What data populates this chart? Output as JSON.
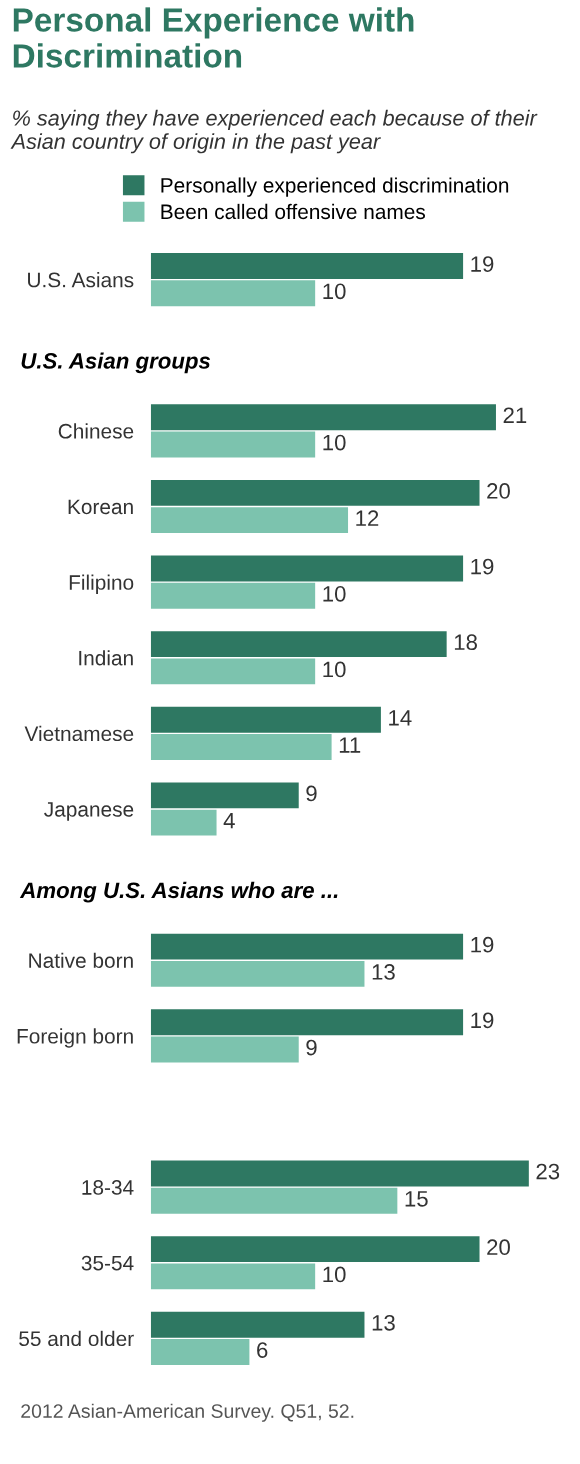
{
  "chart_data": {
    "type": "bar",
    "orientation": "horizontal",
    "title": "Personal Experience with Discrimination",
    "subtitle": "% saying they have experienced each because of their Asian country of origin in the past year",
    "categories": [
      "U.S. Asians",
      null,
      "Chinese",
      "Korean",
      "Filipino",
      "Indian",
      "Vietnamese",
      "Japanese",
      null,
      "Native born",
      "Foreign born",
      null,
      "18-34",
      "35-54",
      "55 and older"
    ],
    "series": [
      {
        "name": "Personally experienced discrimination",
        "color": "#2e7862",
        "values": [
          19,
          null,
          21,
          20,
          19,
          18,
          14,
          9,
          null,
          19,
          19,
          null,
          23,
          20,
          13
        ]
      },
      {
        "name": "Been called offensive names",
        "color": "#7cc3ae",
        "values": [
          10,
          null,
          10,
          12,
          10,
          10,
          11,
          4,
          null,
          13,
          9,
          null,
          15,
          10,
          6
        ]
      }
    ],
    "annotations": [
      "U.S. Asian groups",
      "Among U.S. Asians who are ...",
      "2012 Asian-American Survey. Q51, 52."
    ],
    "data_labels": true,
    "legend": "top left",
    "grid": false
  }
}
